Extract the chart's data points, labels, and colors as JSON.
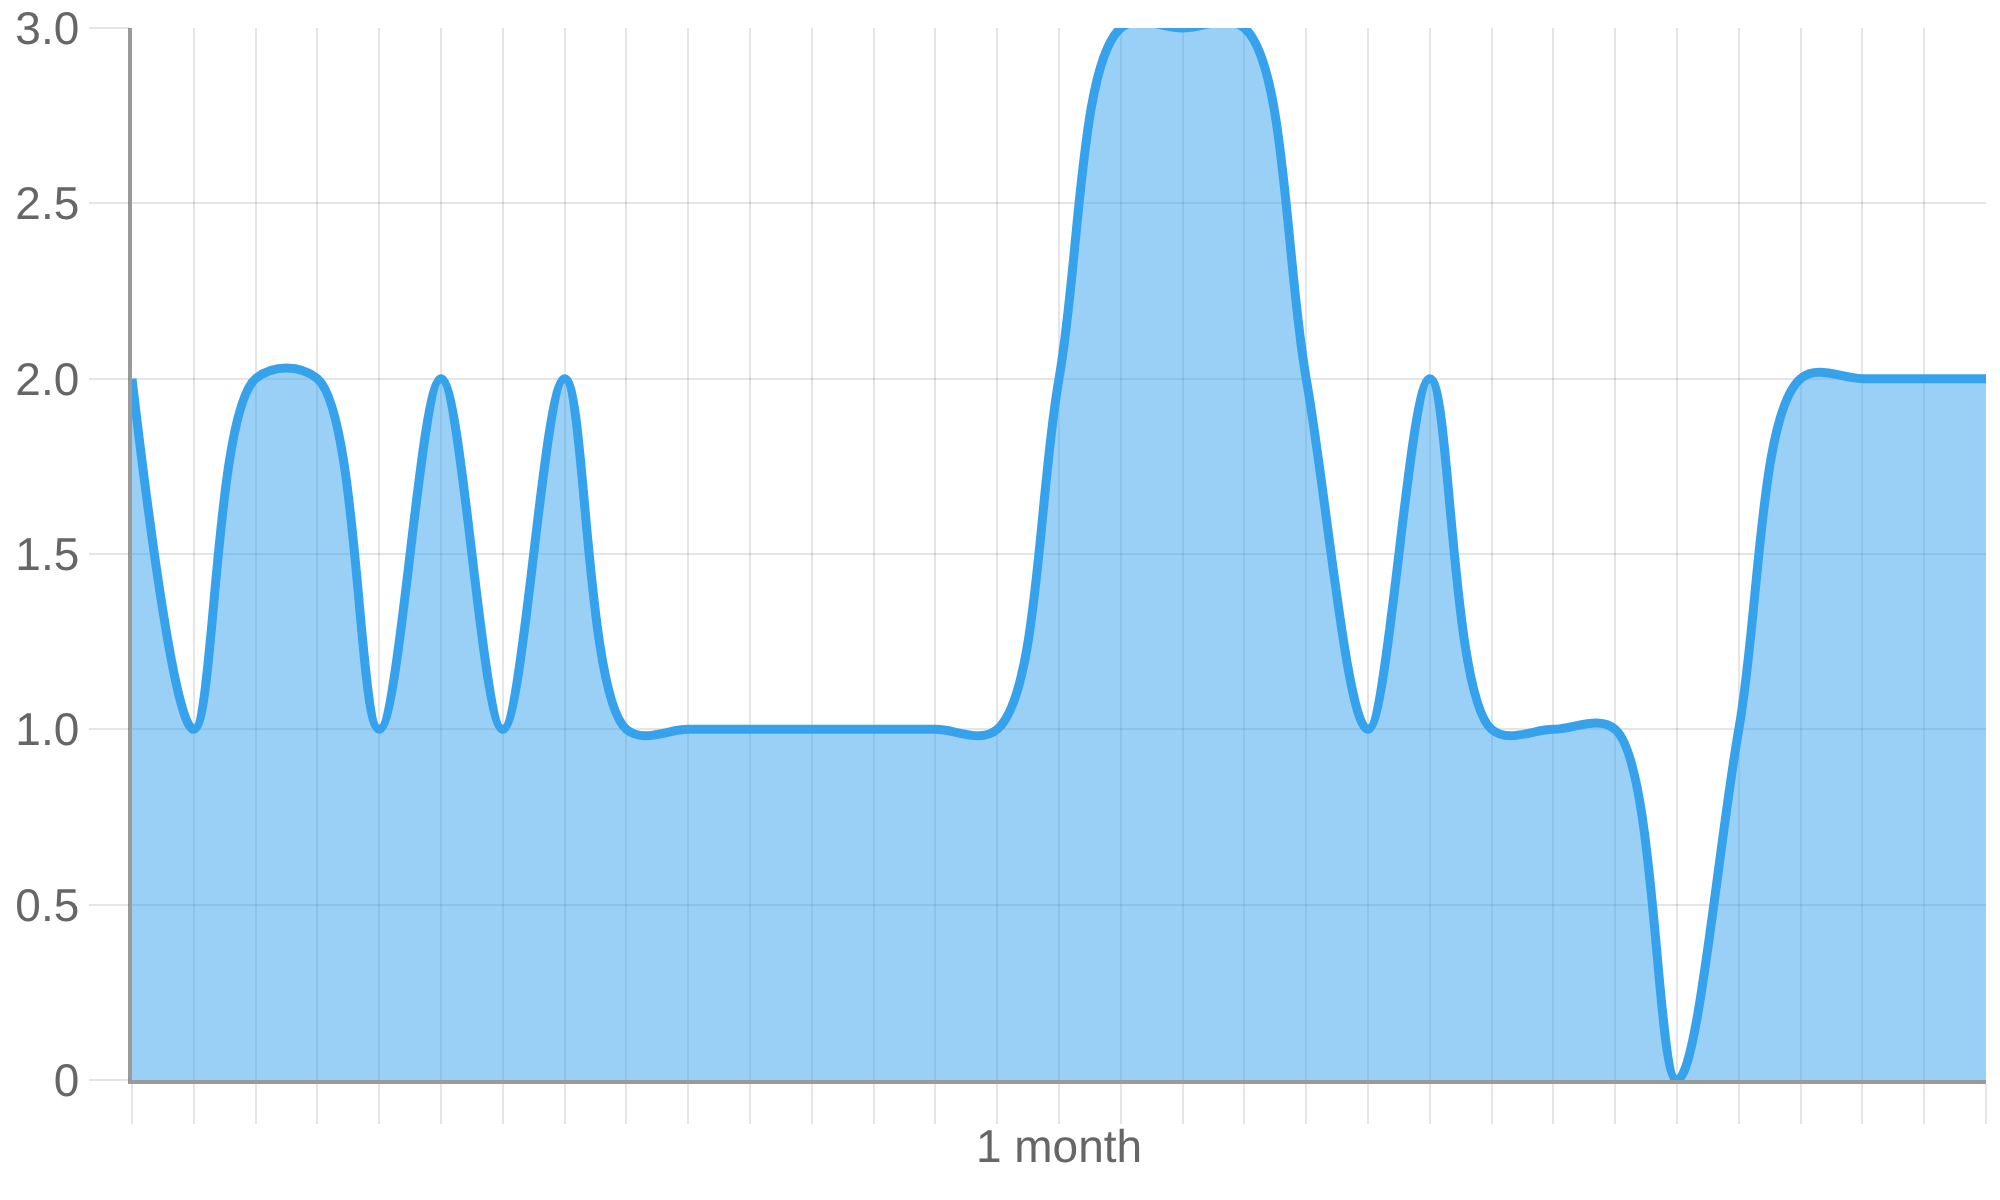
{
  "chart_data": {
    "type": "area",
    "xlabel": "1 month",
    "categories": [
      null,
      null,
      null,
      null,
      null,
      null,
      null,
      null,
      null,
      null,
      null,
      null,
      null,
      null,
      null,
      null,
      null,
      null,
      null,
      null,
      null,
      null,
      null,
      null,
      null,
      null,
      null,
      null,
      null,
      null,
      null
    ],
    "values": [
      2,
      1,
      2,
      2,
      1,
      2,
      1,
      2,
      1,
      1,
      1,
      1,
      1,
      1,
      1,
      2,
      3,
      3,
      3,
      2,
      1,
      2,
      1,
      1,
      1,
      0,
      1,
      2,
      2,
      2,
      2
    ],
    "color": "#36a2eb",
    "ylim": [
      0,
      3
    ],
    "yticks": [
      0,
      0.5,
      {
        "value": 1,
        "label": "1.0"
      },
      1.5,
      {
        "value": 2,
        "label": "2.0"
      },
      2.5,
      {
        "value": 3,
        "label": "3.0"
      }
    ],
    "grid": true,
    "tick_labels": "y"
  }
}
